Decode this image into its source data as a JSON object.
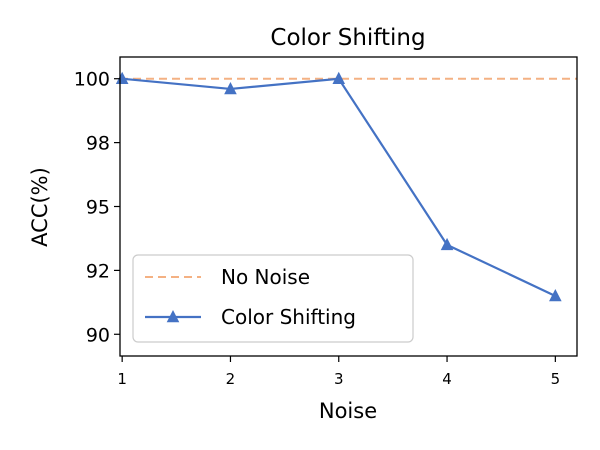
{
  "chart_data": {
    "type": "line",
    "title": "Color Shifting",
    "xlabel": "Noise",
    "ylabel": "ACC(%)",
    "x": [
      1,
      2,
      3,
      4,
      5
    ],
    "xlim": [
      0.98,
      5.2
    ],
    "ylim": [
      89.15,
      100.85
    ],
    "y_ticks": [
      {
        "value": 90.0,
        "label": "90"
      },
      {
        "value": 92.5,
        "label": "92"
      },
      {
        "value": 95.0,
        "label": "95"
      },
      {
        "value": 97.5,
        "label": "98"
      },
      {
        "value": 100.0,
        "label": "100"
      }
    ],
    "x_ticks": [
      {
        "value": 1,
        "label": "1"
      },
      {
        "value": 2,
        "label": "2"
      },
      {
        "value": 3,
        "label": "3"
      },
      {
        "value": 4,
        "label": "4"
      },
      {
        "value": 5,
        "label": "5"
      }
    ],
    "series": [
      {
        "name": "Color Shifting",
        "values": [
          100.0,
          99.6,
          100.0,
          93.5,
          91.5
        ],
        "color": "#4472c4",
        "marker": "triangle-up",
        "style": "solid"
      }
    ],
    "reference_lines": [
      {
        "name": "No Noise",
        "value": 100.0,
        "color": "#f4b183",
        "style": "dashed"
      }
    ],
    "legend": {
      "position": "lower-left",
      "entries": [
        "No Noise",
        "Color Shifting"
      ]
    },
    "grid": false
  }
}
